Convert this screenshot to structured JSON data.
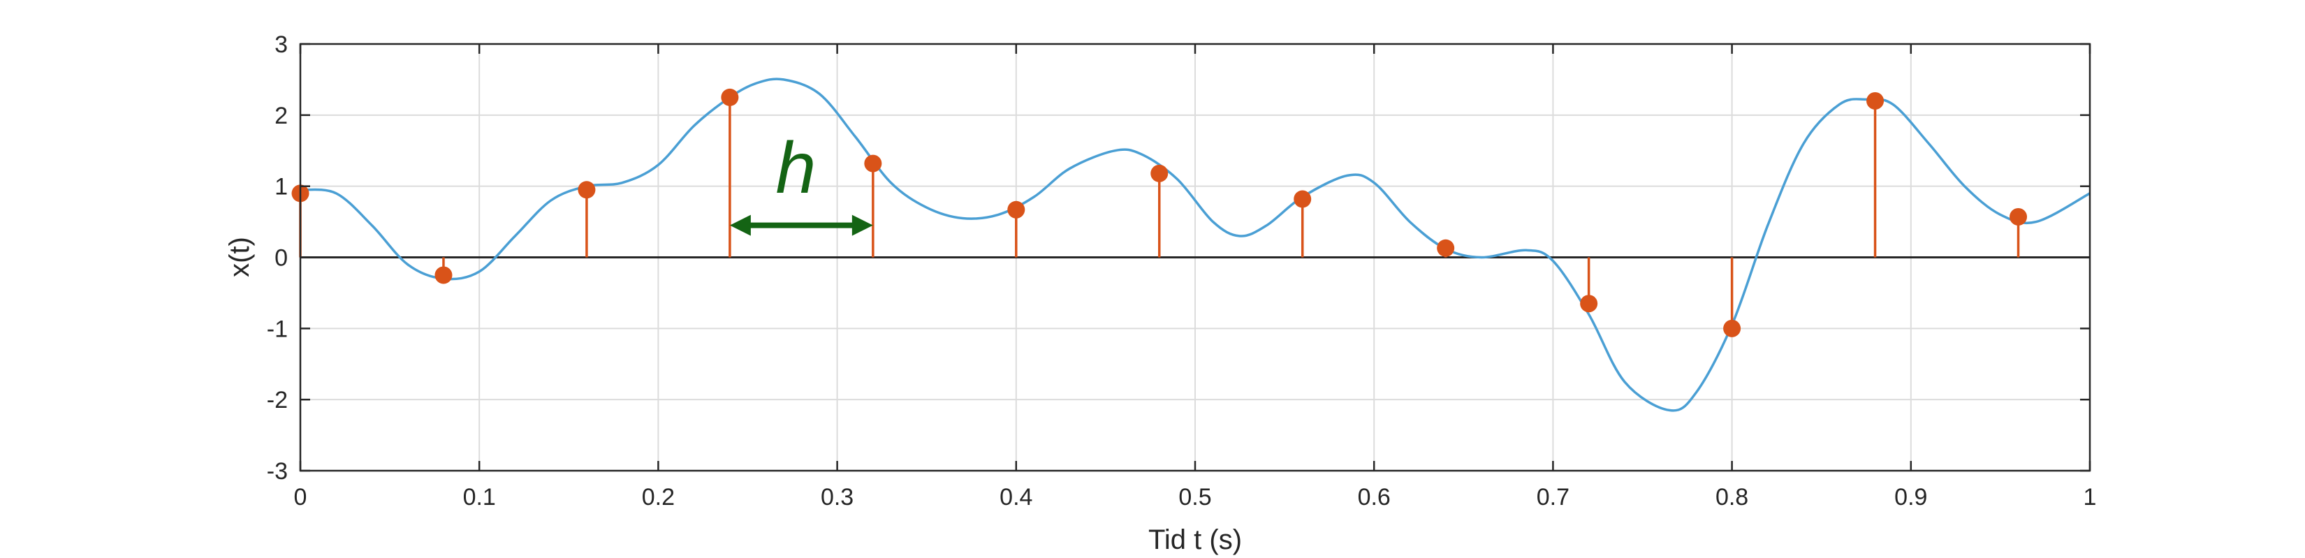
{
  "chart_data": {
    "type": "line",
    "xlabel": "Tid t (s)",
    "ylabel": "x(t)",
    "xlim": [
      0,
      1
    ],
    "ylim": [
      -3,
      3
    ],
    "xticks": [
      0,
      0.1,
      0.2,
      0.3,
      0.4,
      0.5,
      0.6,
      0.7,
      0.8,
      0.9,
      1
    ],
    "xtick_labels": [
      "0",
      "0.1",
      "0.2",
      "0.3",
      "0.4",
      "0.5",
      "0.6",
      "0.7",
      "0.8",
      "0.9",
      "1"
    ],
    "yticks": [
      -3,
      -2,
      -1,
      0,
      1,
      2,
      3
    ],
    "ytick_labels": [
      "-3",
      "-2",
      "-1",
      "0",
      "1",
      "2",
      "3"
    ],
    "grid": true,
    "series": [
      {
        "kind": "line",
        "color": "#4a9fd4",
        "x": [
          0,
          0.02,
          0.04,
          0.06,
          0.08,
          0.1,
          0.12,
          0.14,
          0.16,
          0.18,
          0.2,
          0.22,
          0.24,
          0.255,
          0.27,
          0.29,
          0.31,
          0.33,
          0.35,
          0.37,
          0.39,
          0.41,
          0.43,
          0.455,
          0.47,
          0.49,
          0.51,
          0.525,
          0.54,
          0.56,
          0.585,
          0.6,
          0.62,
          0.64,
          0.66,
          0.685,
          0.7,
          0.72,
          0.74,
          0.765,
          0.78,
          0.8,
          0.82,
          0.84,
          0.86,
          0.875,
          0.89,
          0.91,
          0.93,
          0.95,
          0.97,
          1.0
        ],
        "y": [
          0.95,
          0.9,
          0.45,
          -0.1,
          -0.3,
          -0.2,
          0.3,
          0.8,
          1.0,
          1.05,
          1.3,
          1.85,
          2.25,
          2.45,
          2.5,
          2.3,
          1.7,
          1.05,
          0.7,
          0.55,
          0.6,
          0.85,
          1.25,
          1.5,
          1.45,
          1.1,
          0.5,
          0.3,
          0.45,
          0.85,
          1.15,
          1.05,
          0.5,
          0.12,
          0.0,
          0.1,
          -0.05,
          -0.8,
          -1.75,
          -2.15,
          -1.9,
          -0.95,
          0.45,
          1.6,
          2.15,
          2.22,
          2.15,
          1.6,
          1.0,
          0.6,
          0.5,
          0.9
        ]
      },
      {
        "kind": "stem",
        "color": "#d95319",
        "x": [
          0,
          0.08,
          0.16,
          0.24,
          0.32,
          0.4,
          0.48,
          0.56,
          0.64,
          0.72,
          0.8,
          0.88,
          0.96
        ],
        "y": [
          0.9,
          -0.25,
          0.95,
          2.25,
          1.32,
          0.67,
          1.18,
          0.82,
          0.13,
          -0.65,
          -1.0,
          2.2,
          0.57
        ]
      }
    ],
    "annotations": [
      {
        "text": "h",
        "color": "#146414",
        "arrow": {
          "from_x": 0.24,
          "to_x": 0.32,
          "y": 0.45,
          "direction": "double"
        },
        "text_x": 0.28,
        "text_y": 1.3
      }
    ]
  }
}
